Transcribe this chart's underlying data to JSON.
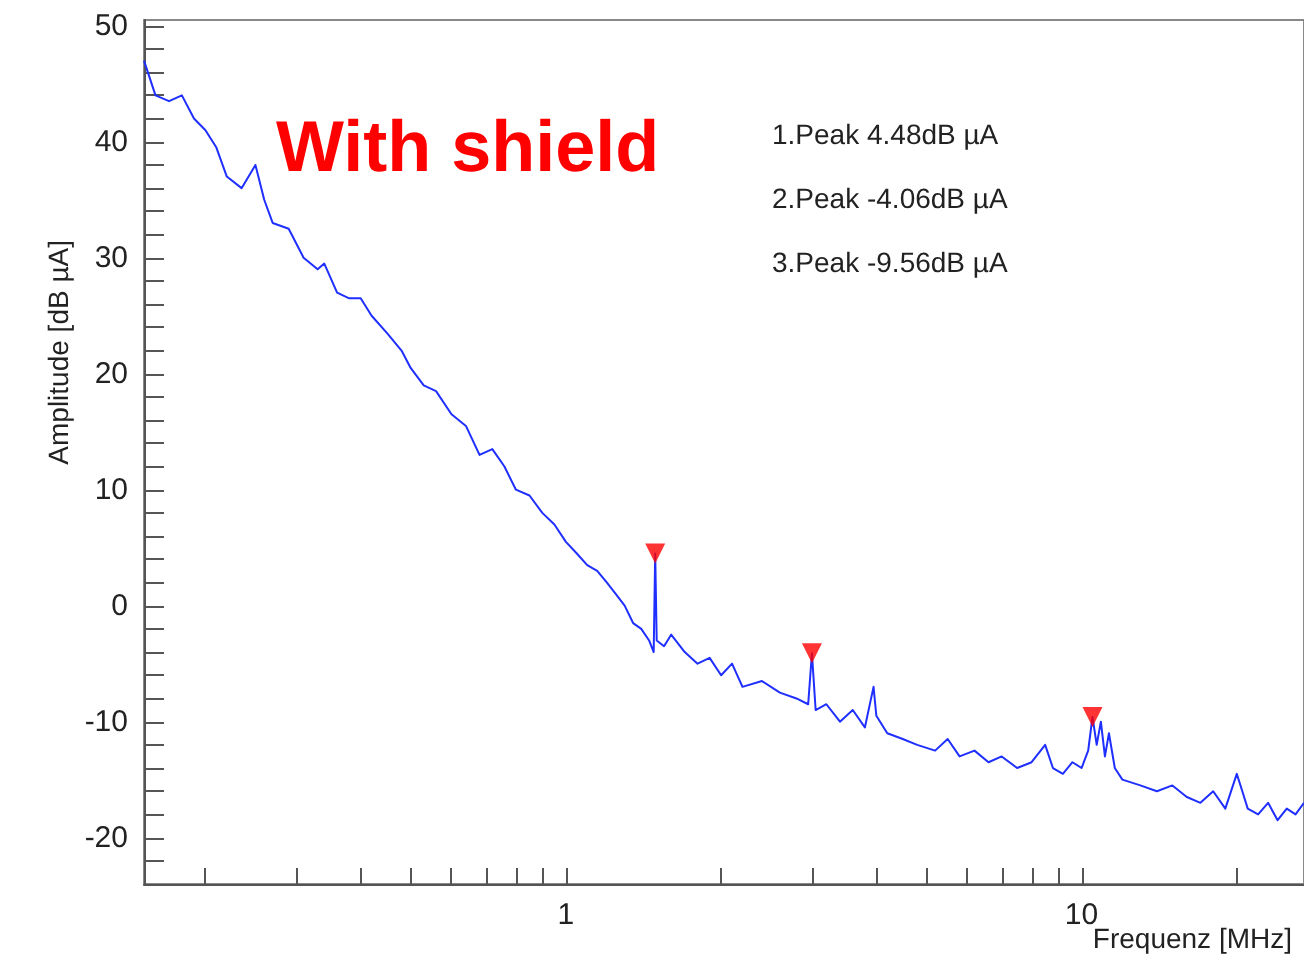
{
  "chart_data": {
    "type": "line",
    "title": "With shield",
    "xlabel": "Frequenz [MHz]",
    "ylabel": "Amplitude [dB µA]",
    "log": "x",
    "grid": false,
    "xlim": [
      0.152,
      27
    ],
    "ylim": [
      -24,
      50.5
    ],
    "xticks": [
      {
        "value": 0.2,
        "label": null
      },
      {
        "value": 0.3,
        "label": null
      },
      {
        "value": 0.4,
        "label": null
      },
      {
        "value": 0.5,
        "label": null
      },
      {
        "value": 0.6,
        "label": null
      },
      {
        "value": 0.7,
        "label": null
      },
      {
        "value": 0.8,
        "label": null
      },
      {
        "value": 0.9,
        "label": null
      },
      1,
      {
        "value": 2,
        "label": null
      },
      {
        "value": 3,
        "label": null
      },
      {
        "value": 4,
        "label": null
      },
      {
        "value": 5,
        "label": null
      },
      {
        "value": 6,
        "label": null
      },
      {
        "value": 7,
        "label": null
      },
      {
        "value": 8,
        "label": null
      },
      {
        "value": 9,
        "label": null
      },
      10,
      {
        "value": 20,
        "label": null
      }
    ],
    "yticks": [
      {
        "value": -22,
        "label": null
      },
      -20,
      {
        "value": -18,
        "label": null
      },
      {
        "value": -16,
        "label": null
      },
      {
        "value": -14,
        "label": null
      },
      {
        "value": -12,
        "label": null
      },
      -10,
      {
        "value": -8,
        "label": null
      },
      {
        "value": -6,
        "label": null
      },
      {
        "value": -4,
        "label": null
      },
      {
        "value": -2,
        "label": null
      },
      0,
      {
        "value": 2,
        "label": null
      },
      {
        "value": 4,
        "label": null
      },
      {
        "value": 6,
        "label": null
      },
      {
        "value": 8,
        "label": null
      },
      10,
      {
        "value": 12,
        "label": null
      },
      {
        "value": 14,
        "label": null
      },
      {
        "value": 16,
        "label": null
      },
      {
        "value": 18,
        "label": null
      },
      20,
      {
        "value": 22,
        "label": null
      },
      {
        "value": 24,
        "label": null
      },
      {
        "value": 26,
        "label": null
      },
      {
        "value": 28,
        "label": null
      },
      30,
      {
        "value": 32,
        "label": null
      },
      {
        "value": 34,
        "label": null
      },
      {
        "value": 36,
        "label": null
      },
      {
        "value": 38,
        "label": null
      },
      40,
      {
        "value": 42,
        "label": null
      },
      {
        "value": 44,
        "label": null
      },
      {
        "value": 46,
        "label": null
      },
      {
        "value": 48,
        "label": null
      },
      50
    ],
    "annotations": [
      "1.Peak 4.48dB µA",
      "2.Peak -4.06dB µA",
      "3.Peak -9.56dB µA"
    ],
    "series": [
      {
        "color": "#1f2fff",
        "marker": "none",
        "line_style": "solid",
        "x": [
          0.152,
          0.16,
          0.17,
          0.18,
          0.19,
          0.2,
          0.21,
          0.22,
          0.235,
          0.25,
          0.26,
          0.27,
          0.29,
          0.31,
          0.33,
          0.34,
          0.36,
          0.38,
          0.4,
          0.42,
          0.45,
          0.48,
          0.5,
          0.53,
          0.56,
          0.6,
          0.64,
          0.68,
          0.72,
          0.76,
          0.8,
          0.85,
          0.9,
          0.95,
          1.0,
          1.05,
          1.1,
          1.15,
          1.2,
          1.25,
          1.3,
          1.35,
          1.4,
          1.45,
          1.48,
          1.49,
          1.5,
          1.55,
          1.6,
          1.7,
          1.8,
          1.9,
          2.0,
          2.1,
          2.2,
          2.4,
          2.6,
          2.8,
          2.95,
          3.0,
          3.05,
          3.2,
          3.4,
          3.6,
          3.8,
          3.95,
          4.0,
          4.2,
          4.5,
          4.8,
          5.2,
          5.5,
          5.8,
          6.2,
          6.6,
          7.0,
          7.5,
          8.0,
          8.5,
          8.8,
          9.2,
          9.6,
          10.0,
          10.3,
          10.5,
          10.7,
          10.9,
          11.1,
          11.3,
          11.6,
          12,
          13,
          14,
          15,
          16,
          17,
          18,
          19,
          20,
          20.5,
          21,
          22,
          23,
          24,
          25,
          26,
          27
        ],
        "values": [
          47,
          44,
          43.5,
          44,
          42,
          41,
          39.5,
          37,
          36,
          38,
          35,
          33,
          32.5,
          30,
          29,
          29.5,
          27,
          26.5,
          26.5,
          25,
          23.5,
          22,
          20.5,
          19,
          18.5,
          16.5,
          15.5,
          13,
          13.5,
          12,
          10,
          9.5,
          8,
          7,
          5.5,
          4.5,
          3.5,
          3,
          2,
          1,
          0,
          -1.5,
          -2,
          -3,
          -4,
          4.5,
          -3,
          -3.5,
          -2.5,
          -4,
          -5,
          -4.5,
          -6,
          -5,
          -7,
          -6.5,
          -7.5,
          -8,
          -8.5,
          -4.1,
          -9,
          -8.5,
          -10,
          -9,
          -10.5,
          -7,
          -9.5,
          -11,
          -11.5,
          -12,
          -12.5,
          -11.5,
          -13,
          -12.5,
          -13.5,
          -13,
          -14,
          -13.5,
          -12,
          -14,
          -14.5,
          -13.5,
          -14,
          -12.5,
          -9.6,
          -12,
          -10,
          -13,
          -11,
          -14,
          -15,
          -15.5,
          -16,
          -15.5,
          -16.5,
          -17,
          -16,
          -17.5,
          -14.5,
          -16,
          -17.5,
          -18,
          -17,
          -18.5,
          -17.5,
          -18,
          -17
        ]
      },
      {
        "type": "scatter",
        "color": "#ff0000",
        "marker": "triangle",
        "x": [
          1.49,
          3.0,
          10.5
        ],
        "values": [
          4.5,
          -4.1,
          -9.6
        ]
      }
    ]
  }
}
